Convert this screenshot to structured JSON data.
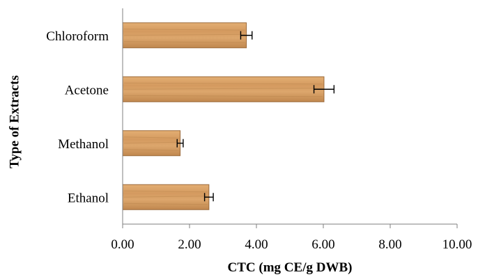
{
  "chart_data": {
    "type": "bar",
    "orientation": "horizontal",
    "categories": [
      "Ethanol",
      "Methanol",
      "Acetone",
      "Chloroform"
    ],
    "values": [
      2.58,
      1.72,
      6.02,
      3.7
    ],
    "error": [
      0.13,
      0.09,
      0.3,
      0.17
    ],
    "xlabel": "CTC (mg CE/g DWB)",
    "ylabel": "Type of Extracts",
    "xlim": [
      0,
      10
    ],
    "xticks": [
      "0.00",
      "2.00",
      "4.00",
      "6.00",
      "8.00",
      "10.00"
    ],
    "grid": false,
    "legend": "none",
    "colors": {
      "bar_fill": "#D9A066",
      "bar_dark": "#B07A44",
      "bar_stroke": "#9C6A3A",
      "axis": "#7F7F7F",
      "error_bar": "#000000"
    }
  }
}
